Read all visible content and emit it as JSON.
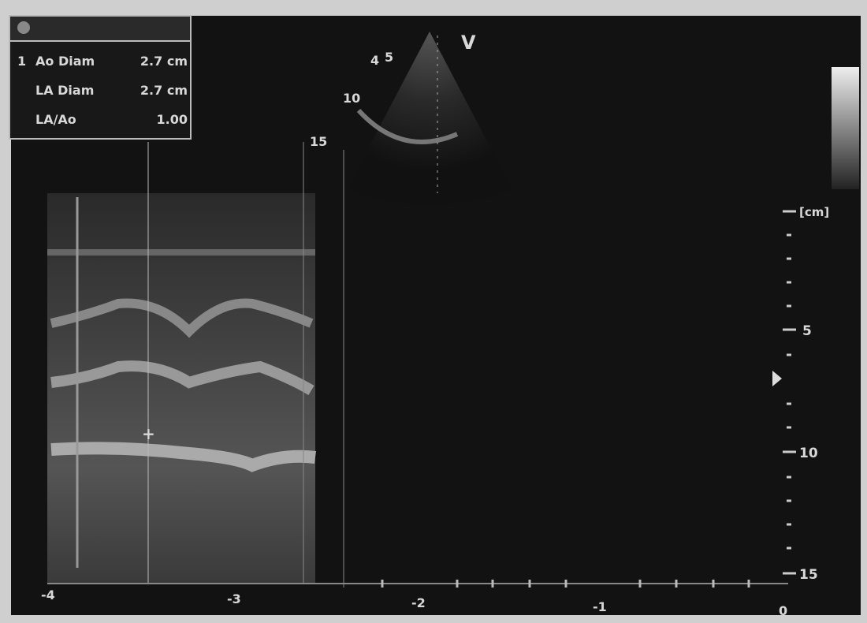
{
  "measurements": {
    "index": "1",
    "rows": [
      [
        "Ao Diam",
        "2.7 cm"
      ],
      [
        "LA Diam",
        "2.7 cm"
      ],
      [
        "LA/Ao",
        "1.00"
      ]
    ]
  },
  "sector": {
    "mode": "V",
    "depth_labels": [
      "4",
      "5",
      "10",
      "15"
    ]
  },
  "depth_scale": {
    "unit": "[cm]",
    "labels": [
      "5",
      "10",
      "15"
    ]
  },
  "time_axis": {
    "labels": [
      "-4",
      "-3",
      "-2",
      "-1",
      "0"
    ]
  }
}
